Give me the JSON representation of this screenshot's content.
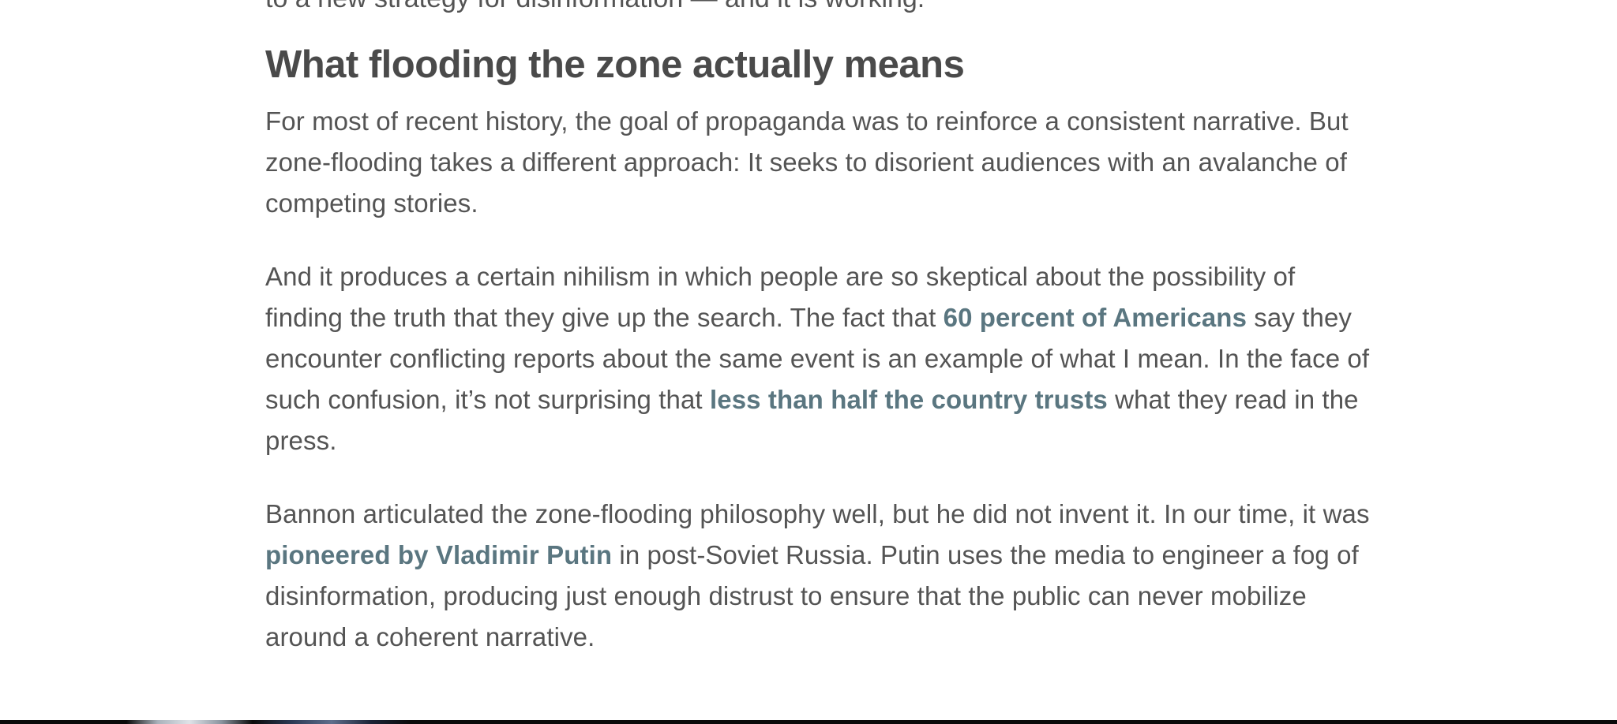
{
  "article": {
    "top_cut_text": "to a new strategy for disinformation — and it is working.",
    "heading": "What flooding the zone actually means",
    "paragraphs": [
      {
        "t1": "For most of recent history, the goal of propaganda was to reinforce a consistent narrative. But zone-flooding takes a different approach: It seeks to disorient audiences with an avalanche of competing stories."
      },
      {
        "t1": "And it produces a certain nihilism in which people are so skeptical about the possibility of finding the truth that they give up the search. The fact that ",
        "link1": "60 percent of Americans",
        "t2": " say they encounter conflicting reports about the same event is an example of what I mean. In the face of such confusion, it’s not surprising that ",
        "link2": "less than half the country trusts",
        "t3": " what they read in the press."
      },
      {
        "t1": "Bannon articulated the zone-flooding philosophy well, but he did not invent it. In our time, it was ",
        "link1": "pioneered by Vladimir Putin",
        "t2": " in post-Soviet Russia. Putin uses the media to engineer a fog of disinformation, producing just enough distrust to ensure that the public can never mobilize around a coherent narrative."
      }
    ]
  },
  "colors": {
    "body_text": "#545454",
    "heading_text": "#4a4a4a",
    "link": "#5a7680",
    "background": "#ffffff"
  }
}
